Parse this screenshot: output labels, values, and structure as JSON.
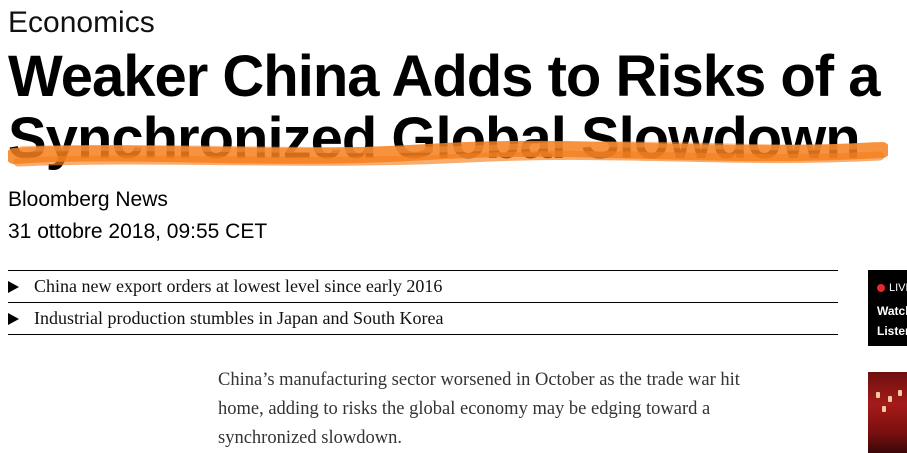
{
  "article": {
    "section": "Economics",
    "headline_lines": [
      "Weaker China Adds to Risks of a",
      "Synchronized Global Slowdown"
    ],
    "byline": "Bloomberg News",
    "date": "31 ottobre 2018, 09:55 CET",
    "bullets": [
      "China new export orders at lowest level since early 2016",
      "Industrial production stumbles in Japan and South Korea"
    ],
    "body_lines": [
      "China’s manufacturing sector worsened in October as the trade war hit",
      "home, adding to risks the global economy may be edging toward a",
      "synchronized slowdown."
    ]
  },
  "sidebar": {
    "live_label": "LIVE",
    "watch_label": "Watch",
    "listen_label": "Listen"
  },
  "colors": {
    "highlight": "#f57f1f",
    "live_dot": "#e8282b",
    "thumbnail": "#a51a1a"
  }
}
